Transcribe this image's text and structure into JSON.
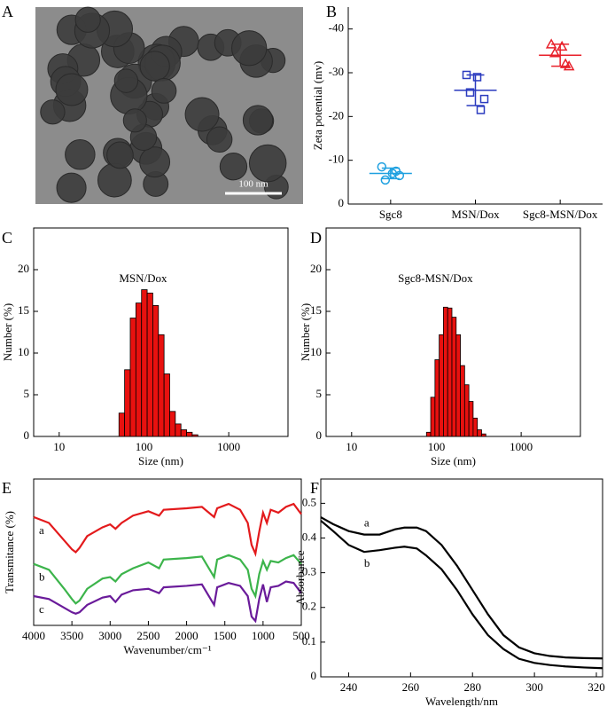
{
  "chart_data": [
    {
      "type": "image",
      "label": "A",
      "annotation": "100 nm"
    },
    {
      "type": "dot",
      "label": "B",
      "ylabel": "Zeta potential (mv)",
      "categories": [
        "Sgc8",
        "MSN/Dox",
        "Sgc8-MSN/Dox"
      ],
      "ylim": [
        0,
        -45
      ],
      "yticks": [
        0,
        -10,
        -20,
        -30,
        -40
      ],
      "groups": [
        {
          "color": "#1ea0e0",
          "marker": "circle",
          "points": [
            -8.5,
            -7,
            -5.5,
            -6.5,
            -7.5
          ],
          "mean": -7,
          "sd": 1.2
        },
        {
          "color": "#2b3bbf",
          "marker": "square",
          "points": [
            -29.5,
            -29,
            -25.5,
            -24,
            -21.5
          ],
          "mean": -26,
          "sd": 3.5
        },
        {
          "color": "#e8202a",
          "marker": "triangle",
          "points": [
            -36.5,
            -36,
            -34.5,
            -31.5,
            -32
          ],
          "mean": -34,
          "sd": 2.5
        }
      ]
    },
    {
      "type": "histogram",
      "label": "C",
      "annotation": "MSN/Dox",
      "xlabel": "Size (nm)",
      "ylabel": "Number (%)",
      "log_x": true,
      "xlim": [
        5,
        5000
      ],
      "xticks": [
        10,
        100,
        1000
      ],
      "ylim": [
        0,
        25
      ],
      "yticks": [
        0,
        5,
        10,
        15,
        20
      ],
      "color": "#e8110f",
      "bins": [
        50.7,
        59.1,
        68.9,
        80.3,
        93.6,
        109.1,
        127.1,
        148.1,
        172.6,
        201.1,
        234.4,
        273.1,
        318.3,
        370.9,
        432.2
      ],
      "counts": [
        2.8,
        8.0,
        14.2,
        16.0,
        17.6,
        17.2,
        15.7,
        12.2,
        7.5,
        3.0,
        1.5,
        0.8,
        0.5,
        0.2
      ]
    },
    {
      "type": "histogram",
      "label": "D",
      "annotation": "Sgc8-MSN/Dox",
      "xlabel": "Size (nm)",
      "ylabel": "Number (%)",
      "log_x": true,
      "xlim": [
        5,
        5000
      ],
      "xticks": [
        10,
        100,
        1000
      ],
      "ylim": [
        0,
        25
      ],
      "yticks": [
        0,
        5,
        10,
        15,
        20
      ],
      "color": "#e8110f",
      "bins": [
        76.4,
        85.7,
        96.2,
        107.9,
        121.1,
        135.9,
        152.5,
        171.1,
        192,
        215.4,
        241.7,
        271.2,
        304.3,
        341.4,
        383
      ],
      "counts": [
        0.5,
        4.7,
        9.2,
        12.2,
        15.5,
        15.4,
        14.3,
        12.2,
        8.5,
        6.2,
        4.2,
        2.2,
        0.8,
        0.3
      ]
    },
    {
      "type": "line",
      "label": "E",
      "xlabel": "Wavenumber/cm⁻¹",
      "ylabel": "Transmitance (%)",
      "xlim": [
        4000,
        500
      ],
      "xticks": [
        4000,
        3500,
        3000,
        2500,
        2000,
        1500,
        1000,
        500
      ],
      "ylim": [
        0,
        100
      ],
      "x": [
        4000,
        3800,
        3600,
        3500,
        3450,
        3400,
        3300,
        3100,
        3000,
        2930,
        2850,
        2700,
        2500,
        2360,
        2300,
        2000,
        1800,
        1640,
        1600,
        1450,
        1300,
        1200,
        1150,
        1100,
        1050,
        1000,
        950,
        900,
        800,
        700,
        600,
        500
      ],
      "series": [
        {
          "name": "a",
          "color": "#e31a1c",
          "values": [
            74,
            70,
            58,
            52,
            50,
            53,
            61,
            67,
            69,
            66,
            70,
            75,
            78,
            75,
            79,
            80,
            81,
            74,
            80,
            83,
            79,
            70,
            55,
            49,
            64,
            77,
            70,
            79,
            77,
            81,
            83,
            76
          ]
        },
        {
          "name": "b",
          "color": "#3cb44b",
          "values": [
            42,
            38,
            25,
            18,
            15,
            17,
            25,
            32,
            33,
            30,
            35,
            39,
            43,
            39,
            45,
            46,
            47,
            33,
            45,
            48,
            45,
            38,
            25,
            20,
            35,
            44,
            38,
            44,
            43,
            46,
            48,
            42
          ]
        },
        {
          "name": "c",
          "color": "#6a1b9a",
          "values": [
            20,
            18,
            12,
            9,
            8,
            9,
            14,
            19,
            20,
            16,
            21,
            24,
            25,
            22,
            26,
            27,
            28,
            14,
            26,
            29,
            27,
            20,
            6,
            3,
            18,
            28,
            16,
            26,
            27,
            30,
            29,
            22
          ]
        }
      ]
    },
    {
      "type": "line",
      "label": "F",
      "xlabel": "Wavelength/nm",
      "ylabel": "Absorbance",
      "xlim": [
        231,
        322
      ],
      "xticks": [
        240,
        260,
        280,
        300,
        320
      ],
      "ylim": [
        0,
        0.57
      ],
      "yticks": [
        0,
        0.1,
        0.2,
        0.3,
        0.4,
        0.5
      ],
      "x": [
        231,
        235,
        240,
        245,
        250,
        255,
        258,
        262,
        265,
        270,
        275,
        280,
        285,
        290,
        295,
        300,
        305,
        310,
        316,
        322
      ],
      "series": [
        {
          "name": "a",
          "color": "#000000",
          "values": [
            0.46,
            0.44,
            0.42,
            0.41,
            0.41,
            0.425,
            0.43,
            0.43,
            0.42,
            0.38,
            0.32,
            0.25,
            0.18,
            0.12,
            0.085,
            0.068,
            0.06,
            0.056,
            0.054,
            0.053
          ]
        },
        {
          "name": "b",
          "color": "#000000",
          "values": [
            0.45,
            0.42,
            0.38,
            0.36,
            0.365,
            0.372,
            0.375,
            0.37,
            0.35,
            0.31,
            0.25,
            0.18,
            0.12,
            0.08,
            0.052,
            0.04,
            0.034,
            0.03,
            0.027,
            0.025
          ]
        }
      ]
    }
  ]
}
